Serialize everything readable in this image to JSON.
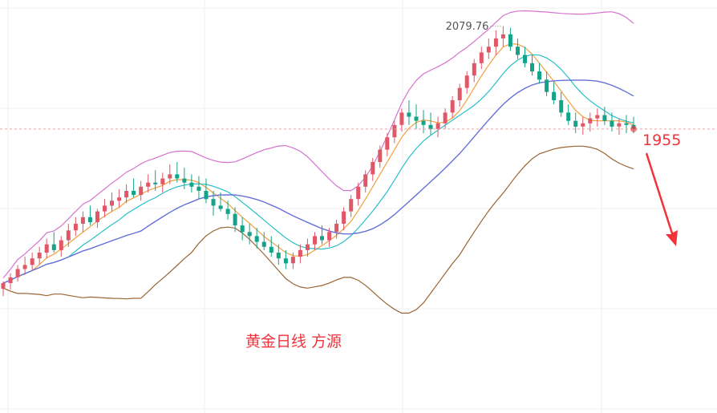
{
  "chart_data": {
    "type": "candlestick",
    "title": "黄金日线 方源",
    "grid": true,
    "ylim": [
      1620,
      2100
    ],
    "peak_label": "2079.76",
    "current_price_label": "1955",
    "colors": {
      "up": "#e05768",
      "down": "#12a388",
      "ma_fast": "#f29f3d",
      "ma_mid": "#29c0c8",
      "ma_slow": "#6670d8",
      "boll_upper": "#d673cf",
      "boll_lower": "#9a6433",
      "arrow": "#f2333c",
      "price_line": "#e6a3a8",
      "title": "#f2333c",
      "price_label": "#f2333c",
      "peak_label": "#555555"
    },
    "candles": [
      [
        1761,
        1770,
        1752,
        1768
      ],
      [
        1768,
        1780,
        1760,
        1775
      ],
      [
        1775,
        1790,
        1770,
        1785
      ],
      [
        1785,
        1800,
        1778,
        1790
      ],
      [
        1790,
        1805,
        1783,
        1798
      ],
      [
        1798,
        1812,
        1790,
        1805
      ],
      [
        1805,
        1822,
        1798,
        1815
      ],
      [
        1815,
        1830,
        1805,
        1808
      ],
      [
        1808,
        1825,
        1800,
        1820
      ],
      [
        1820,
        1840,
        1812,
        1832
      ],
      [
        1832,
        1848,
        1825,
        1840
      ],
      [
        1840,
        1855,
        1830,
        1848
      ],
      [
        1848,
        1862,
        1838,
        1842
      ],
      [
        1842,
        1858,
        1835,
        1855
      ],
      [
        1855,
        1870,
        1848,
        1862
      ],
      [
        1862,
        1878,
        1855,
        1868
      ],
      [
        1868,
        1882,
        1860,
        1872
      ],
      [
        1872,
        1888,
        1865,
        1880
      ],
      [
        1880,
        1895,
        1872,
        1875
      ],
      [
        1875,
        1892,
        1868,
        1885
      ],
      [
        1885,
        1900,
        1878,
        1890
      ],
      [
        1890,
        1905,
        1880,
        1888
      ],
      [
        1888,
        1902,
        1878,
        1895
      ],
      [
        1895,
        1912,
        1888,
        1900
      ],
      [
        1900,
        1915,
        1890,
        1895
      ],
      [
        1895,
        1908,
        1882,
        1890
      ],
      [
        1890,
        1900,
        1878,
        1885
      ],
      [
        1885,
        1898,
        1870,
        1880
      ],
      [
        1880,
        1895,
        1865,
        1870
      ],
      [
        1870,
        1880,
        1850,
        1862
      ],
      [
        1862,
        1878,
        1855,
        1858
      ],
      [
        1858,
        1868,
        1845,
        1852
      ],
      [
        1852,
        1860,
        1830,
        1838
      ],
      [
        1838,
        1848,
        1820,
        1830
      ],
      [
        1830,
        1840,
        1815,
        1825
      ],
      [
        1825,
        1835,
        1810,
        1818
      ],
      [
        1818,
        1830,
        1808,
        1812
      ],
      [
        1812,
        1825,
        1800,
        1805
      ],
      [
        1805,
        1815,
        1790,
        1798
      ],
      [
        1798,
        1808,
        1785,
        1792
      ],
      [
        1792,
        1805,
        1785,
        1800
      ],
      [
        1800,
        1815,
        1792,
        1808
      ],
      [
        1808,
        1822,
        1800,
        1815
      ],
      [
        1815,
        1830,
        1808,
        1825
      ],
      [
        1825,
        1838,
        1815,
        1820
      ],
      [
        1820,
        1835,
        1812,
        1830
      ],
      [
        1830,
        1845,
        1822,
        1840
      ],
      [
        1840,
        1860,
        1832,
        1855
      ],
      [
        1855,
        1875,
        1848,
        1870
      ],
      [
        1870,
        1890,
        1862,
        1885
      ],
      [
        1885,
        1905,
        1878,
        1900
      ],
      [
        1900,
        1920,
        1892,
        1915
      ],
      [
        1915,
        1935,
        1908,
        1930
      ],
      [
        1930,
        1950,
        1922,
        1945
      ],
      [
        1945,
        1965,
        1938,
        1960
      ],
      [
        1960,
        1980,
        1952,
        1975
      ],
      [
        1975,
        1990,
        1960,
        1970
      ],
      [
        1970,
        1985,
        1955,
        1965
      ],
      [
        1965,
        1978,
        1950,
        1960
      ],
      [
        1960,
        1975,
        1948,
        1955
      ],
      [
        1955,
        1970,
        1945,
        1962
      ],
      [
        1962,
        1980,
        1955,
        1975
      ],
      [
        1975,
        1995,
        1968,
        1990
      ],
      [
        1990,
        2010,
        1982,
        2005
      ],
      [
        2005,
        2025,
        1998,
        2020
      ],
      [
        2020,
        2040,
        2012,
        2035
      ],
      [
        2035,
        2055,
        2028,
        2048
      ],
      [
        2048,
        2065,
        2040,
        2055
      ],
      [
        2055,
        2075,
        2045,
        2065
      ],
      [
        2065,
        2079.76,
        2055,
        2070
      ],
      [
        2070,
        2078,
        2050,
        2055
      ],
      [
        2055,
        2065,
        2040,
        2045
      ],
      [
        2045,
        2055,
        2030,
        2035
      ],
      [
        2035,
        2045,
        2020,
        2025
      ],
      [
        2025,
        2035,
        2010,
        2015
      ],
      [
        2015,
        2025,
        1995,
        2000
      ],
      [
        2000,
        2012,
        1985,
        1990
      ],
      [
        1990,
        2000,
        1970,
        1975
      ],
      [
        1975,
        1985,
        1960,
        1965
      ],
      [
        1965,
        1975,
        1950,
        1958
      ],
      [
        1958,
        1970,
        1948,
        1962
      ],
      [
        1962,
        1975,
        1952,
        1968
      ],
      [
        1968,
        1980,
        1958,
        1972
      ],
      [
        1972,
        1982,
        1960,
        1965
      ],
      [
        1965,
        1975,
        1952,
        1958
      ],
      [
        1958,
        1968,
        1948,
        1962
      ],
      [
        1962,
        1972,
        1950,
        1960
      ],
      [
        1960,
        1970,
        1950,
        1955
      ]
    ]
  }
}
